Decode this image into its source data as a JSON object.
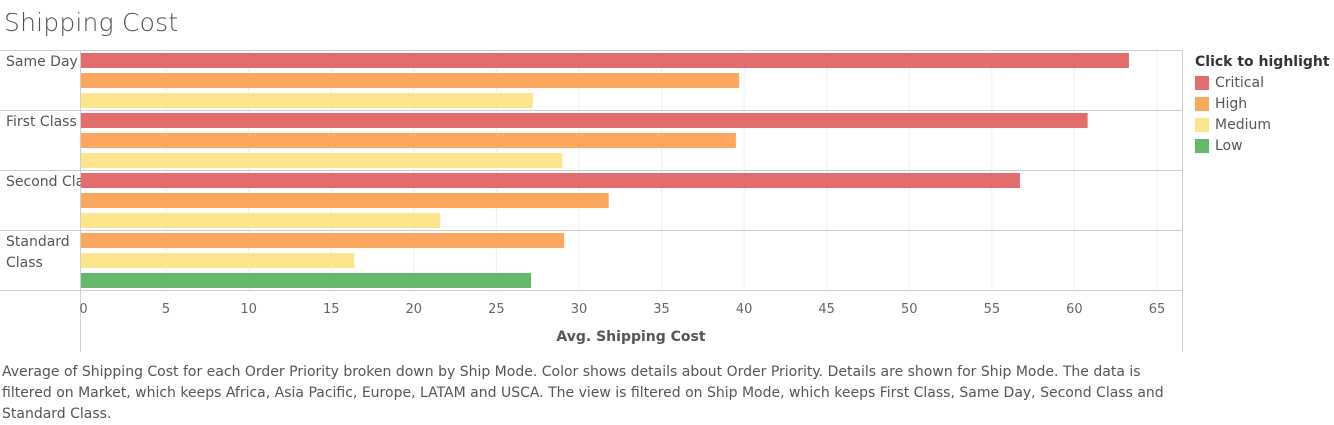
{
  "title": "Shipping Cost",
  "legend": {
    "title": "Click to highlight",
    "items": [
      {
        "label": "Critical",
        "color": "#e36c6c"
      },
      {
        "label": "High",
        "color": "#fca65e"
      },
      {
        "label": "Medium",
        "color": "#fde58c"
      },
      {
        "label": "Low",
        "color": "#62b96a"
      }
    ]
  },
  "caption": "Average of Shipping Cost for each Order Priority broken down by Ship Mode.  Color shows details about Order Priority.  Details are shown for Ship Mode. The data is filtered on Market, which keeps Africa, Asia Pacific, Europe, LATAM and USCA. The view is filtered on Ship Mode, which keeps First Class, Same Day, Second Class and Standard Class.",
  "chart_data": {
    "type": "bar",
    "orientation": "horizontal",
    "title": "Shipping Cost",
    "xlabel": "Avg. Shipping Cost",
    "ylabel": "",
    "xlim": [
      0,
      66
    ],
    "xticks": [
      0,
      5,
      10,
      15,
      20,
      25,
      30,
      35,
      40,
      45,
      50,
      55,
      60,
      65
    ],
    "grid": true,
    "legend_position": "right",
    "groups": [
      {
        "label": "Same Day",
        "bars": [
          {
            "priority": "Critical",
            "value": 63.3
          },
          {
            "priority": "High",
            "value": 39.7
          },
          {
            "priority": "Medium",
            "value": 27.2
          }
        ]
      },
      {
        "label": "First Class",
        "bars": [
          {
            "priority": "Critical",
            "value": 60.8
          },
          {
            "priority": "High",
            "value": 39.5
          },
          {
            "priority": "Medium",
            "value": 29.0
          }
        ]
      },
      {
        "label": "Second Class",
        "bars": [
          {
            "priority": "Critical",
            "value": 56.7
          },
          {
            "priority": "High",
            "value": 31.8
          },
          {
            "priority": "Medium",
            "value": 21.6
          }
        ]
      },
      {
        "label": "Standard Class",
        "bars": [
          {
            "priority": "High",
            "value": 29.1
          },
          {
            "priority": "Medium",
            "value": 16.4
          },
          {
            "priority": "Low",
            "value": 27.1
          }
        ]
      }
    ]
  }
}
